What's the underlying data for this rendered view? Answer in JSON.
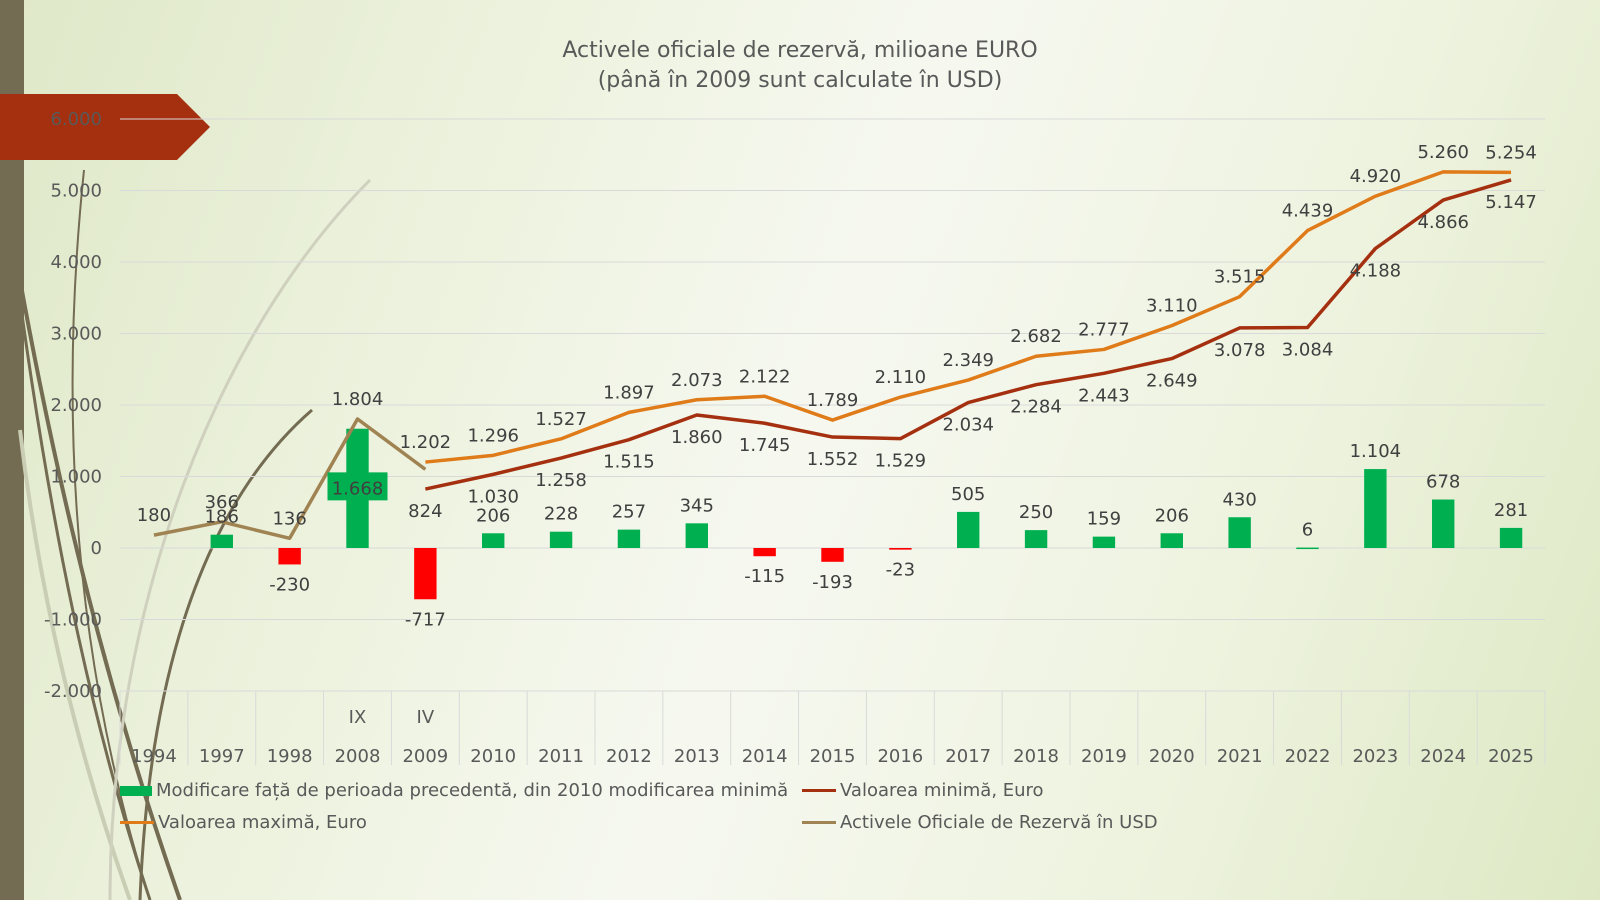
{
  "chart_data": {
    "type": "bar+line",
    "title": "Activele oficiale de rezervă, milioane EURO",
    "subtitle": "(până în 2009 sunt calculate în USD)",
    "xlabel": "",
    "ylabel": "",
    "ylim": [
      -2000,
      6000
    ],
    "yticks": [
      6000,
      5000,
      4000,
      3000,
      2000,
      1000,
      0,
      -1000,
      -2000
    ],
    "ytick_labels": [
      "6.000",
      "5.000",
      "4.000",
      "3.000",
      "2.000",
      "1.000",
      "0",
      "-1.000",
      "-2.000"
    ],
    "grid": true,
    "legend_position": "bottom",
    "categories": [
      "1994",
      "1997",
      "1998",
      "2008",
      "2009",
      "2010",
      "2011",
      "2012",
      "2013",
      "2014",
      "2015",
      "2016",
      "2017",
      "2018",
      "2019",
      "2020",
      "2021",
      "2022",
      "2023",
      "2024",
      "2025"
    ],
    "category_sublabels": [
      "",
      "",
      "",
      "IX",
      "IV",
      "",
      "",
      "",
      "",
      "",
      "",
      "",
      "",
      "",
      "",
      "",
      "",
      "",
      "",
      "",
      ""
    ],
    "series": [
      {
        "name": "Modificare față de  perioada precedentă, din 2010 modificarea minimă",
        "type": "bar",
        "color_positive": "#00b050",
        "color_negative": "#ff0000",
        "values": [
          null,
          186,
          -230,
          1668,
          -717,
          206,
          228,
          257,
          345,
          -115,
          -193,
          -23,
          505,
          250,
          159,
          206,
          430,
          6,
          1104,
          678,
          281
        ],
        "labels": [
          "",
          "186",
          "-230",
          "1.668",
          "-717",
          "206",
          "228",
          "257",
          "345",
          "-115",
          "-193",
          "-23",
          "505",
          "250",
          "159",
          "206",
          "430",
          "6",
          "1.104",
          "678",
          "281"
        ]
      },
      {
        "name": "Valoarea minimă, Euro",
        "type": "line",
        "color": "#a5300f",
        "values": [
          null,
          null,
          null,
          null,
          824,
          1030,
          1258,
          1515,
          1860,
          1745,
          1552,
          1529,
          2034,
          2284,
          2443,
          2649,
          3078,
          3084,
          4188,
          4866,
          5147
        ],
        "labels": [
          "",
          "",
          "",
          "",
          "824",
          "1.030",
          "1.258",
          "1.515",
          "1.860",
          "1.745",
          "1.552",
          "1.529",
          "2.034",
          "2.284",
          "2.443",
          "2.649",
          "3.078",
          "3.084",
          "4.188",
          "4.866",
          "5.147"
        ]
      },
      {
        "name": "Valoarea maximă, Euro",
        "type": "line",
        "color": "#e07b1a",
        "values": [
          null,
          null,
          null,
          null,
          1202,
          1296,
          1527,
          1897,
          2073,
          2122,
          1789,
          2110,
          2349,
          2682,
          2777,
          3110,
          3515,
          4439,
          4920,
          5260,
          5254
        ],
        "labels": [
          "",
          "",
          "",
          "",
          "1.202",
          "1.296",
          "1.527",
          "1.897",
          "2.073",
          "2.122",
          "1.789",
          "2.110",
          "2.349",
          "2.682",
          "2.777",
          "3.110",
          "3.515",
          "4.439",
          "4.920",
          "5.260",
          "5.254"
        ]
      },
      {
        "name": "Activele Oficiale de Rezervă în USD",
        "type": "line",
        "color": "#a08352",
        "values": [
          180,
          366,
          136,
          1804,
          1100,
          null,
          null,
          null,
          null,
          null,
          null,
          null,
          null,
          null,
          null,
          null,
          null,
          null,
          null,
          null,
          null
        ],
        "labels": [
          "180",
          "366",
          "136",
          "1.804",
          "",
          "",
          "",
          "",
          "",
          "",
          "",
          "",
          "",
          "",
          "",
          "",
          "",
          "",
          "",
          "",
          ""
        ]
      }
    ]
  },
  "legend": {
    "bar": "Modificare față de  perioada precedentă, din 2010 modificarea minimă",
    "min": "Valoarea minimă, Euro",
    "max": "Valoarea maximă, Euro",
    "usd": "Activele Oficiale de Rezervă în USD"
  },
  "colors": {
    "banner": "#a5300f",
    "sidebar": "#736b52"
  }
}
